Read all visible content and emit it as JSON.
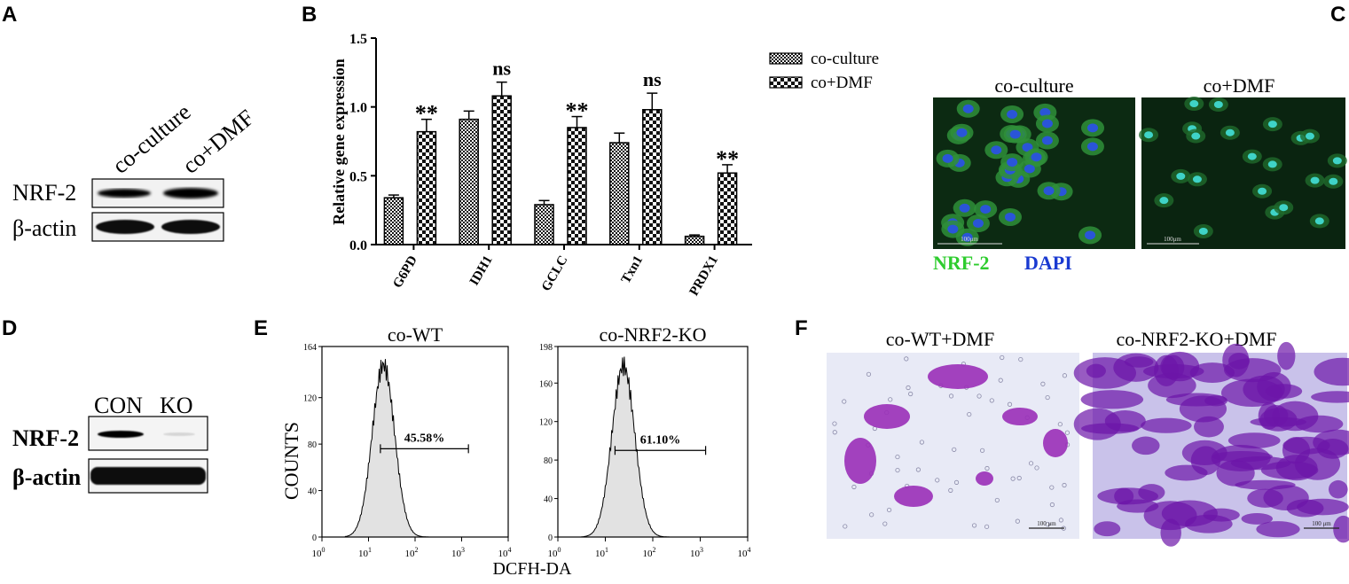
{
  "panels": {
    "A": {
      "letter": "A",
      "lanes": [
        "co-culture",
        "co+DMF"
      ],
      "rows": [
        "NRF-2",
        "β-actin"
      ],
      "nrf2_intensity": [
        0.35,
        0.9
      ]
    },
    "B": {
      "letter": "B",
      "asterisk": "**",
      "ns": "ns"
    },
    "C": {
      "letter": "C",
      "images": [
        "co-culture",
        "co+DMF"
      ],
      "scale_label": "100μm",
      "stain_labels": [
        {
          "text": "NRF-2",
          "color": "#2ecc2e"
        },
        {
          "text": "DAPI",
          "color": "#1a3ad1"
        }
      ]
    },
    "D": {
      "letter": "D",
      "lanes": [
        "CON",
        "KO"
      ],
      "rows": [
        "NRF-2",
        "β-actin"
      ],
      "nrf2_intensity": [
        0.95,
        0.08
      ]
    },
    "E": {
      "letter": "E",
      "ylabel": "COUNTS",
      "xlabel": "DCFH-DA",
      "plots": [
        {
          "title": "co-WT",
          "ymax": 164,
          "yticks": [
            0,
            20,
            40,
            60,
            80,
            100,
            120,
            140,
            164
          ],
          "ytick_labels": [
            "0",
            "40",
            "80",
            "120",
            "164"
          ],
          "gate_label": "45.58%",
          "gate_value": 45.58
        },
        {
          "title": "co-NRF2-KO",
          "ymax": 198,
          "yticks": [
            0,
            40,
            80,
            120,
            160,
            198
          ],
          "ytick_labels": [
            "0",
            "40",
            "80",
            "120",
            "160",
            "198"
          ],
          "gate_label": "61.10%",
          "gate_value": 61.1
        }
      ],
      "xtick_exponents": [
        "0",
        "1",
        "2",
        "3",
        "4"
      ]
    },
    "F": {
      "letter": "F",
      "images": [
        "co-WT+DMF",
        "co-NRF2-KO+DMF"
      ],
      "scale_label": "100 μm"
    }
  },
  "chart_data": {
    "type": "bar",
    "categories": [
      "G6PD",
      "IDH1",
      "GCLC",
      "Txn1",
      "PRDX1"
    ],
    "series": [
      {
        "name": "co-culture",
        "values": [
          0.34,
          0.91,
          0.29,
          0.74,
          0.06
        ],
        "errors": [
          0.02,
          0.06,
          0.03,
          0.07,
          0.01
        ]
      },
      {
        "name": "co+DMF",
        "values": [
          0.82,
          1.08,
          0.85,
          0.98,
          0.52
        ],
        "errors": [
          0.09,
          0.1,
          0.08,
          0.12,
          0.06
        ]
      }
    ],
    "significance": [
      "**",
      "ns",
      "**",
      "ns",
      "**"
    ],
    "ylabel": "Relative gene expression",
    "ylim": [
      0,
      1.5
    ],
    "yticks": [
      0.0,
      0.5,
      1.0,
      1.5
    ],
    "ytick_labels": [
      "0.0",
      "0.5",
      "1.0",
      "1.5"
    ],
    "legend_position": "top-right",
    "colors": {
      "bar_outline": "#000000",
      "pattern": "#000000"
    }
  }
}
